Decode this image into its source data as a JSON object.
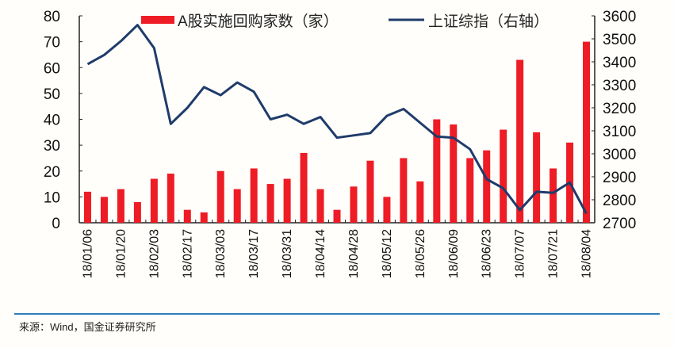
{
  "chart_data": {
    "type": "bar+line",
    "legend": {
      "bar": "A股实施回购家数（家）",
      "line": "上证综指（右轴）",
      "placement": "top"
    },
    "x_tick_labels": [
      "18/01/06",
      "18/01/20",
      "18/02/03",
      "18/02/17",
      "18/03/03",
      "18/03/17",
      "18/03/31",
      "18/04/14",
      "18/04/28",
      "18/05/12",
      "18/05/26",
      "18/06/09",
      "18/06/23",
      "18/07/07",
      "18/07/21",
      "18/08/04"
    ],
    "bar_values": [
      12,
      10,
      13,
      8,
      17,
      19,
      5,
      4,
      20,
      13,
      21,
      15,
      17,
      27,
      13,
      5,
      14,
      24,
      10,
      25,
      16,
      40,
      38,
      25,
      28,
      36,
      63,
      35,
      21,
      31,
      70
    ],
    "line_values": [
      3390,
      3430,
      3490,
      3560,
      3460,
      3130,
      3200,
      3290,
      3255,
      3310,
      3270,
      3150,
      3170,
      3130,
      3160,
      3070,
      3080,
      3090,
      3165,
      3195,
      3135,
      3075,
      3070,
      3020,
      2890,
      2850,
      2755,
      2835,
      2830,
      2875,
      2740
    ],
    "ylim_left": [
      0,
      80
    ],
    "yticks_left": [
      0,
      10,
      20,
      30,
      40,
      50,
      60,
      70,
      80
    ],
    "ylim_right": [
      2700,
      3600
    ],
    "yticks_right": [
      2700,
      2800,
      2900,
      3000,
      3100,
      3200,
      3300,
      3400,
      3500,
      3600
    ],
    "colors": {
      "bar": "#ee1c25",
      "line": "#1f3b6b"
    }
  },
  "source": "来源：Wind，国金证券研究所"
}
